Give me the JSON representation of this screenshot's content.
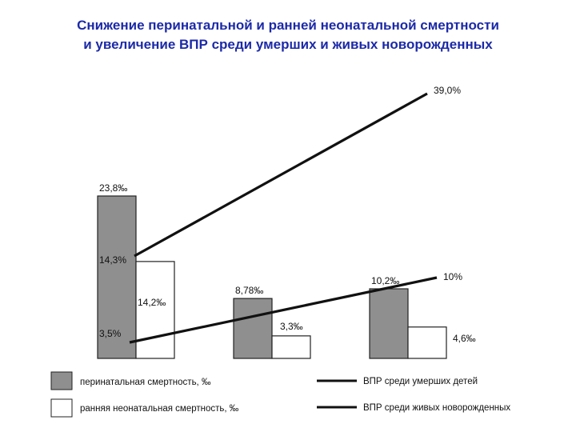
{
  "title_line1": "Снижение перинатальной и ранней неонатальной смертности",
  "title_line2": "и увеличение ВПР среди умерших и живых новорожденных",
  "chart_data": {
    "type": "bar",
    "categories": [
      "",
      "",
      ""
    ],
    "bar_series": [
      {
        "name": "перинатальная смертность, ‰",
        "values": [
          23.8,
          8.78,
          10.2
        ],
        "labels": [
          "23,8‰",
          "8,78‰",
          "10,2‰"
        ],
        "fill": "#8f8f8f"
      },
      {
        "name": "ранняя неонатальная смертность, ‰",
        "values": [
          14.2,
          3.3,
          4.6
        ],
        "labels": [
          "14,2‰",
          "3,3‰",
          "4,6‰"
        ],
        "fill": "#ffffff"
      }
    ],
    "line_series": [
      {
        "name": "ВПР среди умерших детей",
        "start": 14.3,
        "end": 39.0,
        "start_label": "14,3%",
        "end_label": "39,0%"
      },
      {
        "name": "ВПР среди живых новорожденных",
        "start": 3.5,
        "end": 10,
        "start_label": "3,5%",
        "end_label": "10%"
      }
    ],
    "bar_scale_max": 30,
    "line_scale_max": 45,
    "grid": false,
    "legend_position": "bottom"
  }
}
